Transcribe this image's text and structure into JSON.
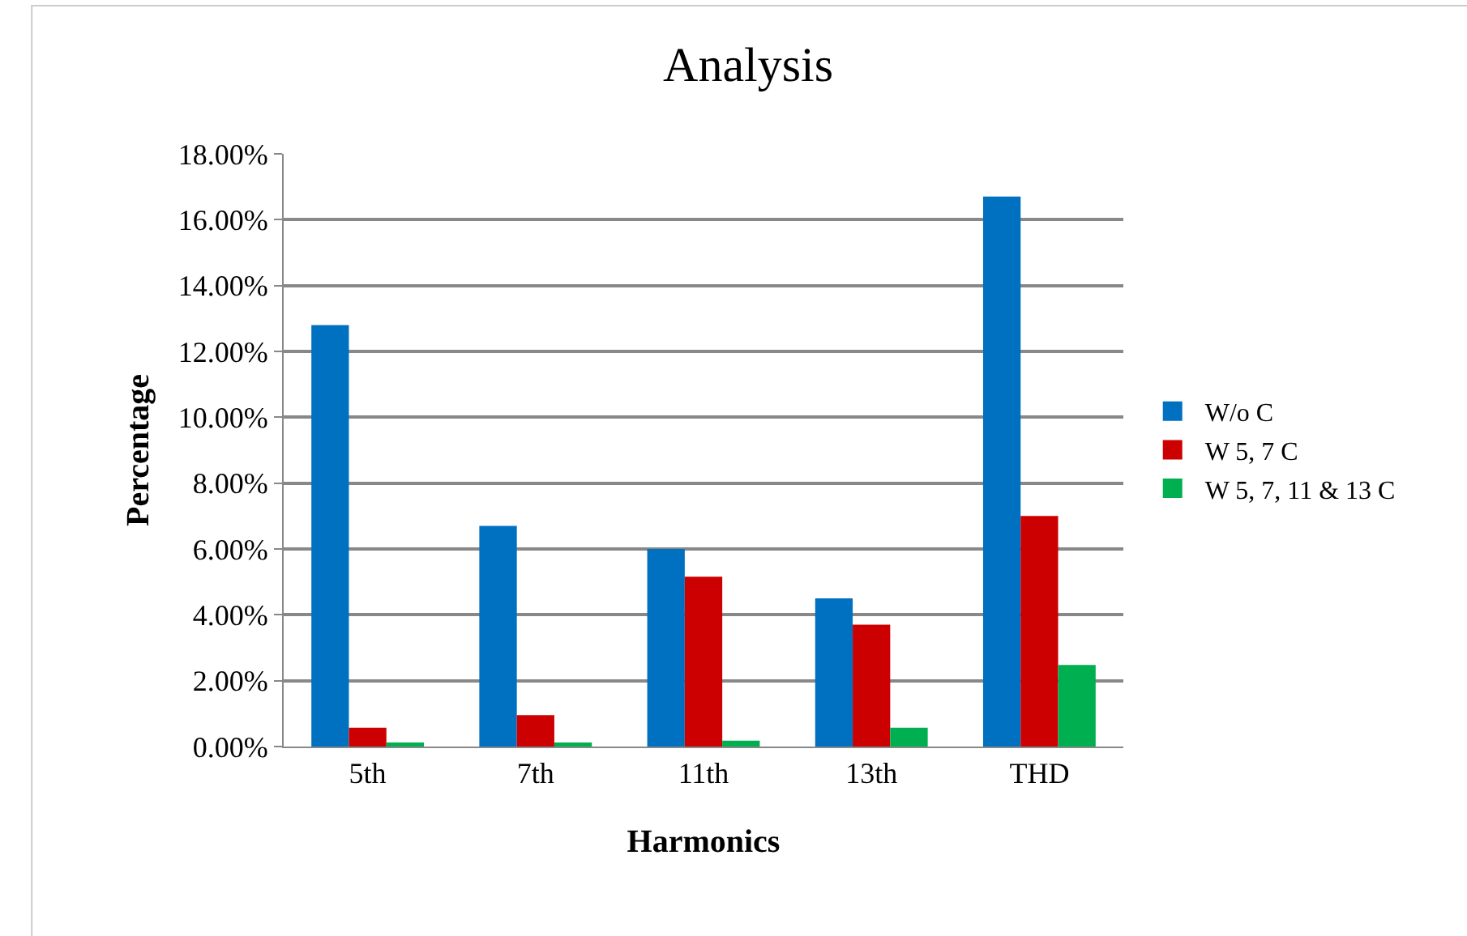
{
  "chart_data": {
    "type": "bar",
    "title": "Analysis",
    "xlabel": "Harmonics",
    "ylabel": "Percentage",
    "categories": [
      "5th",
      "7th",
      "11th",
      "13th",
      "THD"
    ],
    "series": [
      {
        "name": "W/o C",
        "color": "#0070c0",
        "values": [
          12.8,
          6.7,
          6.0,
          4.5,
          16.7
        ]
      },
      {
        "name": "W 5, 7 C",
        "color": "#cc0000",
        "values": [
          0.57,
          0.95,
          5.16,
          3.7,
          7.0
        ]
      },
      {
        "name": "W 5, 7, 11 & 13 C",
        "color": "#00b050",
        "values": [
          0.12,
          0.12,
          0.18,
          0.57,
          2.48
        ]
      }
    ],
    "ylim": [
      0,
      18
    ],
    "yticks": [
      {
        "value": 0,
        "label": "0.00%"
      },
      {
        "value": 2,
        "label": "2.00%"
      },
      {
        "value": 4,
        "label": "4.00%"
      },
      {
        "value": 6,
        "label": "6.00%"
      },
      {
        "value": 8,
        "label": "8.00%"
      },
      {
        "value": 10,
        "label": "10.00%"
      },
      {
        "value": 12,
        "label": "12.00%"
      },
      {
        "value": 14,
        "label": "14.00%"
      },
      {
        "value": 16,
        "label": "16.00%"
      },
      {
        "value": 18,
        "label": "18.00%"
      }
    ],
    "grid": "y",
    "legend": "right"
  }
}
